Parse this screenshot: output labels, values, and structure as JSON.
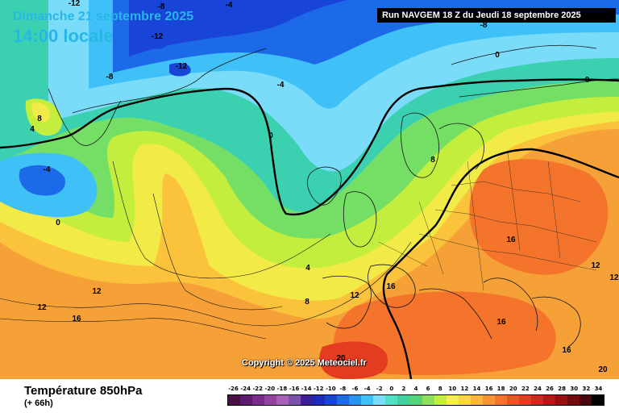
{
  "header": {
    "date": "Dimanche 21 septembre 2025",
    "time": "14:00 locale",
    "run": "Run NAVGEM 18 Z du Jeudi 18 septembre 2025"
  },
  "copyright": "Copyright © 2025 Meteociel.fr",
  "footer": {
    "title": "Température 850hPa",
    "lead": "(+ 66h)"
  },
  "legend": {
    "labels": [
      "-26",
      "-24",
      "-22",
      "-20",
      "-18",
      "-16",
      "-14",
      "-12",
      "-10",
      "-8",
      "-6",
      "-4",
      "-2",
      "0",
      "2",
      "4",
      "6",
      "8",
      "10",
      "12",
      "14",
      "16",
      "18",
      "20",
      "22",
      "24",
      "26",
      "28",
      "30",
      "32",
      "34"
    ],
    "colors": [
      "#4a1046",
      "#5e1a6e",
      "#7b2a8e",
      "#93409f",
      "#a661b5",
      "#7f4fb0",
      "#3c1e96",
      "#1d2cb8",
      "#1944d8",
      "#1d6ae8",
      "#2894f0",
      "#3fc0f6",
      "#7adcf8",
      "#4fe0c8",
      "#3fd1a0",
      "#56d47a",
      "#8fe05a",
      "#c5ee3c",
      "#f4f04a",
      "#fbd73e",
      "#fbb73a",
      "#f89531",
      "#f3742a",
      "#ec5424",
      "#e43c20",
      "#d1271c",
      "#b71618",
      "#970e14",
      "#720a10",
      "#4a050a",
      "#000000"
    ]
  },
  "map": {
    "projection": "polar stereographic",
    "variable": "temperature at 850hPa",
    "unit": "°C",
    "contour_interval": 4,
    "isotherm_labels": [
      {
        "text": "-12",
        "value": -12
      },
      {
        "text": "-8",
        "value": -8
      },
      {
        "text": "-4",
        "value": -4
      },
      {
        "text": "-12",
        "value": -12
      },
      {
        "text": "-12",
        "value": -12
      },
      {
        "text": "-8",
        "value": -8
      },
      {
        "text": "-8",
        "value": -8
      },
      {
        "text": "-4",
        "value": -4
      },
      {
        "text": "0",
        "value": 0
      },
      {
        "text": "-0",
        "value": 0
      },
      {
        "text": "8",
        "value": 8
      },
      {
        "text": "4",
        "value": 4
      },
      {
        "text": "-4",
        "value": -4
      },
      {
        "text": "0",
        "value": 0
      },
      {
        "text": "0",
        "value": 0
      },
      {
        "text": "8",
        "value": 8
      },
      {
        "text": "12",
        "value": 12
      },
      {
        "text": "12",
        "value": 12
      },
      {
        "text": "16",
        "value": 16
      },
      {
        "text": "4",
        "value": 4
      },
      {
        "text": "8",
        "value": 8
      },
      {
        "text": "12",
        "value": 12
      },
      {
        "text": "16",
        "value": 16
      },
      {
        "text": "16",
        "value": 16
      },
      {
        "text": "12",
        "value": 12
      },
      {
        "text": "12",
        "value": 12
      },
      {
        "text": "16",
        "value": 16
      },
      {
        "text": "16",
        "value": 16
      },
      {
        "text": "20",
        "value": 20
      },
      {
        "text": "20",
        "value": 20
      }
    ]
  }
}
